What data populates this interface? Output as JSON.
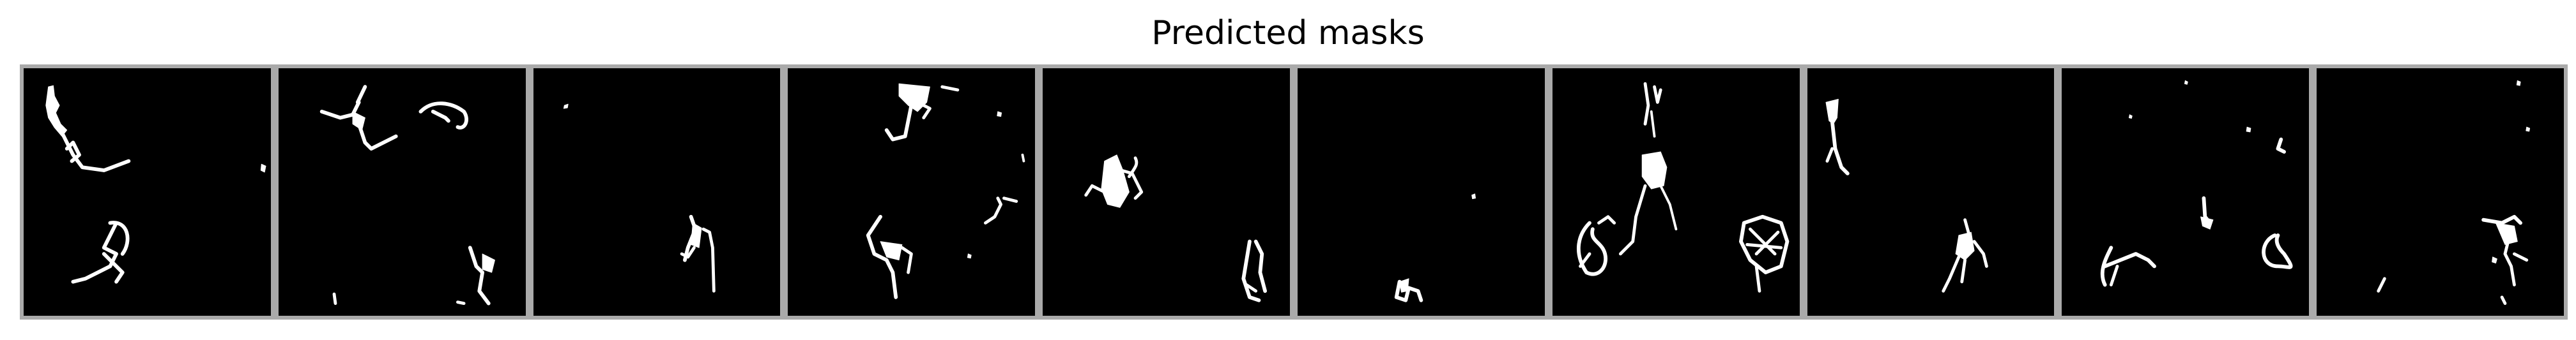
{
  "figure": {
    "title": "Predicted masks",
    "panel_count": 10,
    "background_color": "#ffffff",
    "panel_color": "#000000",
    "mask_color": "#ffffff",
    "border_color": "#aaaaaa"
  }
}
